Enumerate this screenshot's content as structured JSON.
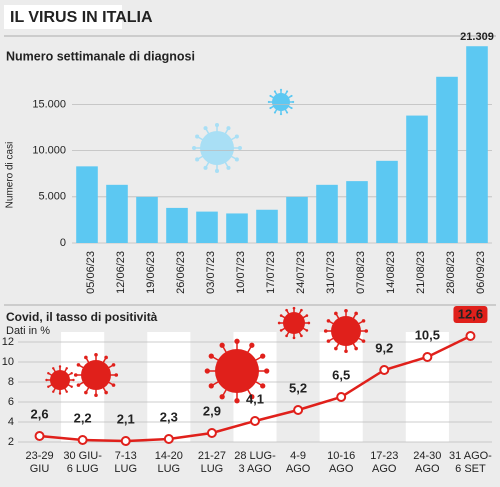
{
  "header": {
    "title": "IL VIRUS IN ITALIA"
  },
  "chart_data": [
    {
      "type": "bar",
      "title": "Numero settimanale di diagnosi",
      "y_label": "Numero di casi",
      "categories": [
        "05/06/23",
        "12/06/23",
        "19/06/23",
        "26/06/23",
        "03/07/23",
        "10/07/23",
        "17/07/23",
        "24/07/23",
        "31/07/23",
        "07/08/23",
        "14/08/23",
        "21/08/23",
        "28/08/23",
        "06/09/23"
      ],
      "values": [
        8300,
        6300,
        5000,
        3800,
        3400,
        3200,
        3600,
        5000,
        6300,
        6700,
        8900,
        13800,
        18000,
        21309
      ],
      "value_labels": [
        null,
        null,
        null,
        null,
        null,
        null,
        null,
        null,
        null,
        null,
        null,
        null,
        null,
        "21.309"
      ],
      "color": "#5cc8f2",
      "ylim": [
        0,
        23500
      ],
      "yticks": [
        0,
        {
          "value": 5000,
          "label": "5.000"
        },
        {
          "value": 10000,
          "label": "10.000"
        },
        {
          "value": 15000,
          "label": "15.000"
        }
      ],
      "grid": true
    },
    {
      "type": "line",
      "title": "Covid, il tasso di positività",
      "subtitle": "Dati in %",
      "categories": [
        [
          "23-29",
          "GIU"
        ],
        [
          "30 GIU-",
          "6 LUG"
        ],
        [
          "7-13",
          "LUG"
        ],
        [
          "14-20",
          "LUG"
        ],
        [
          "21-27",
          "LUG"
        ],
        [
          "28 LUG-",
          "3 AGO"
        ],
        [
          "4-9",
          "AGO"
        ],
        [
          "10-16",
          "AGO"
        ],
        [
          "17-23",
          "AGO"
        ],
        [
          "24-30",
          "AGO"
        ],
        [
          "31 AGO-",
          "6 SET"
        ]
      ],
      "values": [
        2.6,
        2.2,
        2.1,
        2.3,
        2.9,
        4.1,
        5.2,
        6.5,
        9.2,
        10.5,
        12.6
      ],
      "value_labels": [
        "2,6",
        "2,2",
        "2,1",
        "2,3",
        "2,9",
        "4,1",
        "5,2",
        "6,5",
        "9,2",
        "10,5",
        "12,6"
      ],
      "color": "#e0201b",
      "ylim": [
        2,
        13
      ],
      "yticks": [
        2,
        4,
        6,
        8,
        10,
        12
      ],
      "grid": true
    }
  ]
}
